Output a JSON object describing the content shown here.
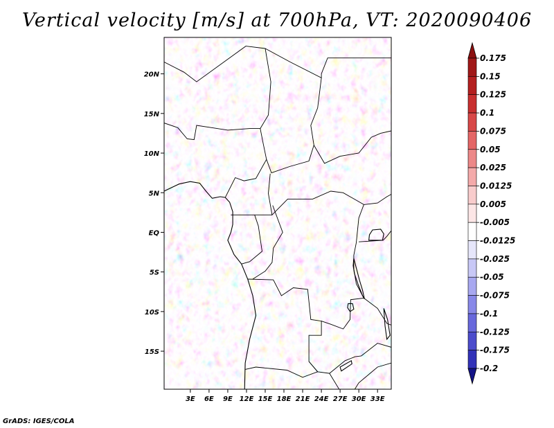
{
  "title": "Vertical velocity [m/s] at 700hPa, VT: 2020090406",
  "credit": "GrADS: IGES/COLA",
  "map": {
    "lon_range": [
      -1.2,
      35.2
    ],
    "lat_range": [
      -19.8,
      24.6
    ],
    "lat_ticks": [
      {
        "lat": 20,
        "label": "20N"
      },
      {
        "lat": 15,
        "label": "15N"
      },
      {
        "lat": 10,
        "label": "10N"
      },
      {
        "lat": 5,
        "label": "5N"
      },
      {
        "lat": 0,
        "label": "EQ"
      },
      {
        "lat": -5,
        "label": "5S"
      },
      {
        "lat": -10,
        "label": "10S"
      },
      {
        "lat": -15,
        "label": "15S"
      }
    ],
    "lon_ticks": [
      {
        "lon": 3,
        "label": "3E"
      },
      {
        "lon": 6,
        "label": "6E"
      },
      {
        "lon": 9,
        "label": "9E"
      },
      {
        "lon": 12,
        "label": "12E"
      },
      {
        "lon": 15,
        "label": "15E"
      },
      {
        "lon": 18,
        "label": "18E"
      },
      {
        "lon": 21,
        "label": "21E"
      },
      {
        "lon": 24,
        "label": "24E"
      },
      {
        "lon": 27,
        "label": "27E"
      },
      {
        "lon": 30,
        "label": "30E"
      },
      {
        "lon": 33,
        "label": "33E"
      }
    ]
  },
  "colorbar": {
    "levels": [
      {
        "label": "0.175",
        "color": "#a01818"
      },
      {
        "label": "0.15",
        "color": "#b42020"
      },
      {
        "label": "0.125",
        "color": "#c83030"
      },
      {
        "label": "0.1",
        "color": "#d84848"
      },
      {
        "label": "0.075",
        "color": "#e46666"
      },
      {
        "label": "0.05",
        "color": "#ec8888"
      },
      {
        "label": "0.025",
        "color": "#f4aaaa"
      },
      {
        "label": "0.0125",
        "color": "#f8cccc"
      },
      {
        "label": "0.005",
        "color": "#fce6e6"
      },
      {
        "label": "-0.005",
        "color": "#ffffff"
      },
      {
        "label": "-0.0125",
        "color": "#e6e6fa"
      },
      {
        "label": "-0.025",
        "color": "#c8c8f6"
      },
      {
        "label": "-0.05",
        "color": "#a8a8f0"
      },
      {
        "label": "-0.075",
        "color": "#8888e8"
      },
      {
        "label": "-0.1",
        "color": "#6868dc"
      },
      {
        "label": "-0.125",
        "color": "#4c4ccc"
      },
      {
        "label": "-0.175",
        "color": "#3232b8"
      },
      {
        "label": "-0.2",
        "color": "#2020a0"
      }
    ],
    "top_arrow_color": "#8c1010",
    "bottom_arrow_color": "#141488"
  },
  "coastline": [
    [
      -1.2,
      5.2
    ],
    [
      1.2,
      6.1
    ],
    [
      3,
      6.4
    ],
    [
      4.5,
      6.2
    ],
    [
      5.5,
      5.2
    ],
    [
      6.5,
      4.3
    ],
    [
      7.8,
      4.5
    ],
    [
      8.6,
      4.4
    ],
    [
      9.3,
      3.8
    ],
    [
      9.8,
      2.6
    ],
    [
      9.8,
      1.0
    ],
    [
      9.5,
      0
    ],
    [
      9.0,
      -1.0
    ],
    [
      10.0,
      -2.8
    ],
    [
      11.2,
      -4.0
    ],
    [
      12.2,
      -5.9
    ],
    [
      13.0,
      -8.0
    ],
    [
      13.5,
      -10.5
    ],
    [
      12.5,
      -13.5
    ],
    [
      11.8,
      -16.5
    ],
    [
      11.7,
      -19.8
    ]
  ],
  "borders": [
    [
      [
        -1.2,
        13.8
      ],
      [
        1.0,
        13.2
      ],
      [
        2.5,
        11.8
      ],
      [
        3.6,
        11.7
      ],
      [
        4.0,
        13.5
      ],
      [
        6.5,
        13.2
      ],
      [
        9.0,
        12.9
      ],
      [
        12.5,
        13.1
      ],
      [
        14.2,
        13.1
      ]
    ],
    [
      [
        14.2,
        13.1
      ],
      [
        14.6,
        11.5
      ],
      [
        15.2,
        9.2
      ],
      [
        13.5,
        6.8
      ],
      [
        11.6,
        6.5
      ],
      [
        10.2,
        6.9
      ],
      [
        8.6,
        4.4
      ]
    ],
    [
      [
        14.2,
        13.1
      ],
      [
        15.5,
        14.8
      ],
      [
        15.9,
        19.0
      ],
      [
        15.0,
        23.2
      ],
      [
        11.9,
        23.5
      ],
      [
        4.0,
        19.0
      ],
      [
        2.0,
        20.2
      ],
      [
        -1.2,
        21.5
      ]
    ],
    [
      [
        15.0,
        23.2
      ],
      [
        19.0,
        21.5
      ],
      [
        24.0,
        19.5
      ],
      [
        24.0,
        20.0
      ],
      [
        25.0,
        22.0
      ],
      [
        32.5,
        22.0
      ],
      [
        35.2,
        22.0
      ]
    ],
    [
      [
        24.0,
        19.5
      ],
      [
        23.4,
        15.7
      ],
      [
        22.3,
        13.5
      ],
      [
        22.8,
        11.0
      ],
      [
        22.0,
        9.0
      ],
      [
        18.9,
        8.3
      ],
      [
        16.0,
        7.5
      ],
      [
        15.2,
        9.2
      ]
    ],
    [
      [
        15.8,
        7.4
      ],
      [
        15.5,
        4.9
      ],
      [
        16.1,
        2.2
      ],
      [
        18.6,
        4.2
      ],
      [
        22.6,
        4.2
      ],
      [
        25.5,
        5.2
      ],
      [
        27.5,
        5.0
      ],
      [
        30.8,
        3.5
      ]
    ],
    [
      [
        22.8,
        11.0
      ],
      [
        24.5,
        8.7
      ],
      [
        27.0,
        9.6
      ],
      [
        30.0,
        10.0
      ],
      [
        32.0,
        12.0
      ],
      [
        33.5,
        12.5
      ],
      [
        35.2,
        12.8
      ]
    ],
    [
      [
        9.5,
        2.2
      ],
      [
        13.3,
        2.2
      ],
      [
        16.1,
        2.2
      ]
    ],
    [
      [
        13.3,
        2.2
      ],
      [
        13.9,
        0.8
      ],
      [
        14.5,
        -2.4
      ],
      [
        12.5,
        -3.7
      ],
      [
        11.2,
        -4.0
      ]
    ],
    [
      [
        16.2,
        3.4
      ],
      [
        17.8,
        0.0
      ],
      [
        16.3,
        -2.0
      ],
      [
        16.1,
        -3.8
      ],
      [
        15.0,
        -4.9
      ],
      [
        13.0,
        -5.9
      ]
    ],
    [
      [
        12.2,
        -5.9
      ],
      [
        16.3,
        -6.0
      ],
      [
        17.6,
        -8.0
      ],
      [
        19.5,
        -7.0
      ],
      [
        21.8,
        -7.2
      ],
      [
        22.3,
        -11.0
      ],
      [
        24.0,
        -11.2
      ],
      [
        24.0,
        -13.0
      ],
      [
        22.0,
        -13.0
      ],
      [
        22.0,
        -16.3
      ],
      [
        23.4,
        -17.6
      ],
      [
        21.0,
        -18.3
      ],
      [
        18.5,
        -17.4
      ],
      [
        13.5,
        -17.0
      ],
      [
        11.8,
        -17.3
      ]
    ],
    [
      [
        24.0,
        -11.2
      ],
      [
        25.5,
        -11.6
      ],
      [
        27.5,
        -12.2
      ],
      [
        28.6,
        -11.0
      ],
      [
        28.7,
        -8.5
      ],
      [
        30.8,
        -8.3
      ]
    ],
    [
      [
        30.8,
        3.5
      ],
      [
        30.0,
        1.8
      ],
      [
        29.6,
        -1.3
      ],
      [
        29.2,
        -2.9
      ],
      [
        29.2,
        -4.6
      ],
      [
        29.6,
        -6.5
      ],
      [
        30.8,
        -8.3
      ]
    ],
    [
      [
        22.0,
        -16.3
      ],
      [
        23.4,
        -17.6
      ],
      [
        25.3,
        -17.8
      ],
      [
        27.8,
        -16.2
      ],
      [
        29.4,
        -15.7
      ],
      [
        30.4,
        -15.6
      ],
      [
        33.0,
        -14.0
      ],
      [
        35.2,
        -14.5
      ]
    ],
    [
      [
        30.8,
        -8.3
      ],
      [
        33.0,
        -9.6
      ],
      [
        34.5,
        -11.5
      ],
      [
        35.2,
        -11.7
      ]
    ],
    [
      [
        30.8,
        3.5
      ],
      [
        33.0,
        3.7
      ],
      [
        34.5,
        4.5
      ],
      [
        35.2,
        4.8
      ]
    ],
    [
      [
        30.0,
        -1.2
      ],
      [
        33.9,
        -1.0
      ],
      [
        34.5,
        -0.5
      ],
      [
        35.2,
        0.2
      ]
    ],
    [
      [
        29.2,
        -20.0
      ],
      [
        30.0,
        -19.0
      ],
      [
        31.5,
        -18.0
      ],
      [
        33.0,
        -17.0
      ],
      [
        35.2,
        -16.5
      ]
    ],
    [
      [
        25.3,
        -17.8
      ],
      [
        27.0,
        -20.0
      ]
    ]
  ],
  "lakes": [
    [
      [
        31.6,
        -1.0
      ],
      [
        33.8,
        -1.0
      ],
      [
        34.0,
        -0.2
      ],
      [
        33.5,
        0.4
      ],
      [
        32.2,
        0.3
      ],
      [
        31.7,
        -0.3
      ]
    ],
    [
      [
        29.2,
        -3.3
      ],
      [
        29.6,
        -4.5
      ],
      [
        30.1,
        -6.0
      ],
      [
        30.6,
        -7.3
      ],
      [
        30.9,
        -8.4
      ],
      [
        30.6,
        -8.0
      ],
      [
        29.9,
        -6.6
      ],
      [
        29.3,
        -5.2
      ],
      [
        29.1,
        -4.2
      ]
    ],
    [
      [
        34.0,
        -9.6
      ],
      [
        34.6,
        -11.0
      ],
      [
        35.0,
        -13.0
      ],
      [
        34.5,
        -13.5
      ],
      [
        34.2,
        -11.8
      ]
    ],
    [
      [
        28.3,
        -9.0
      ],
      [
        29.0,
        -9.0
      ],
      [
        29.2,
        -9.7
      ],
      [
        28.6,
        -10.0
      ],
      [
        28.2,
        -9.5
      ]
    ],
    [
      [
        27.0,
        -17.0
      ],
      [
        28.8,
        -16.2
      ],
      [
        28.9,
        -16.6
      ],
      [
        27.2,
        -17.5
      ]
    ]
  ]
}
